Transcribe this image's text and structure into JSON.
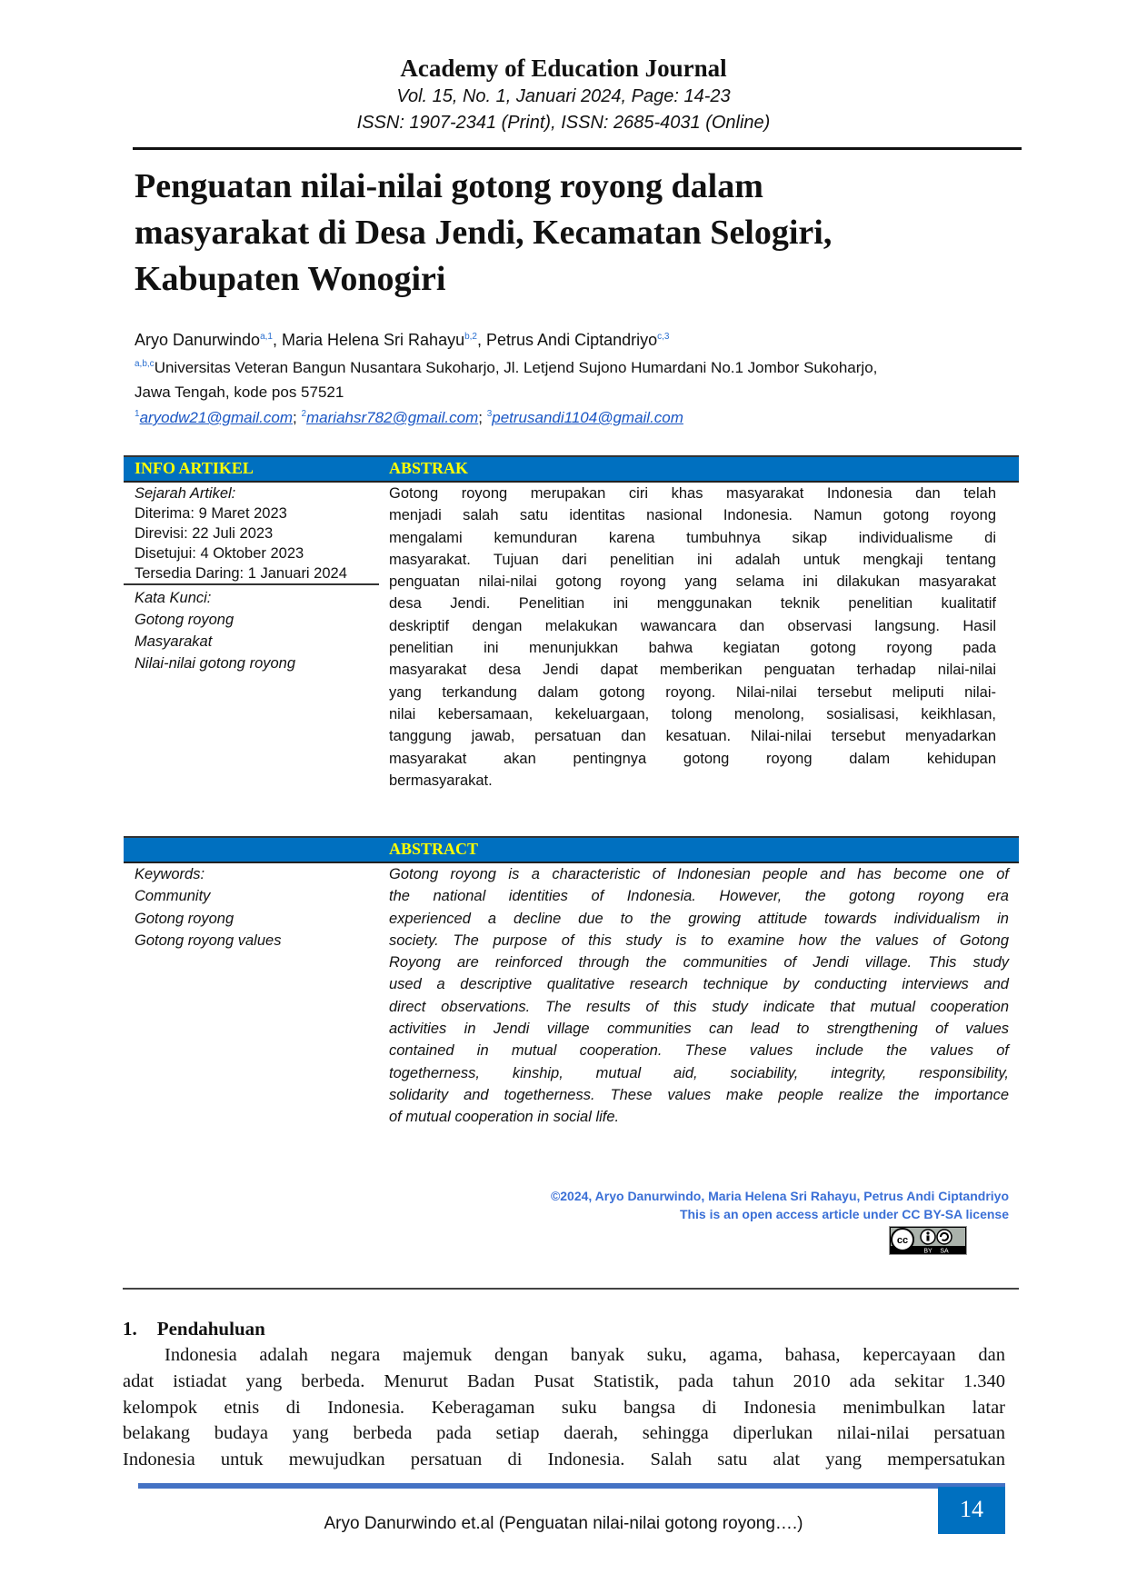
{
  "header": {
    "journal": "Academy of Education Journal",
    "issue": "Vol. 15, No. 1, Januari 2024, Page: 14-23",
    "issn": "ISSN: 1907-2341 (Print), ISSN: 2685-4031 (Online)"
  },
  "title_lines": [
    "Penguatan nilai-nilai gotong royong dalam",
    "masyarakat di Desa Jendi, Kecamatan Selogiri,",
    "Kabupaten Wonogiri"
  ],
  "authors": [
    {
      "name": "Aryo Danurwindo",
      "sup": "a,1"
    },
    {
      "name": "Maria Helena Sri Rahayu",
      "sup": "b,2"
    },
    {
      "name": "Petrus Andi Ciptandriyo",
      "sup": "c,3"
    }
  ],
  "affiliation": {
    "sup": "a,b,c",
    "line1": "Universitas Veteran Bangun Nusantara Sukoharjo, Jl. Letjend Sujono Humardani No.1 Jombor Sukoharjo,",
    "line2": "Jawa Tengah, kode pos 57521"
  },
  "emails": [
    {
      "sup": "1",
      "address": "aryodw21@gmail.com"
    },
    {
      "sup": "2",
      "address": "mariahsr782@gmail.com"
    },
    {
      "sup": "3",
      "address": "petrusandi1104@gmail.com"
    }
  ],
  "info": {
    "heading": "INFO ARTIKEL",
    "history_label": "Sejarah Artikel:",
    "history": [
      "Diterima: 9 Maret 2023",
      "Direvisi: 22 Juli 2023",
      "Disetujui: 4 Oktober 2023",
      "Tersedia Daring: 1 Januari 2024"
    ],
    "keywords_label": "Kata Kunci:",
    "keywords": [
      "Gotong royong",
      "Masyarakat",
      "Nilai-nilai gotong royong"
    ]
  },
  "abstrak": {
    "heading": "ABSTRAK",
    "lines": [
      "Gotong royong merupakan ciri khas masyarakat Indonesia dan telah",
      "menjadi salah satu identitas nasional Indonesia. Namun gotong royong",
      "mengalami kemunduran karena tumbuhnya sikap individualisme di",
      "masyarakat. Tujuan dari penelitian ini adalah untuk mengkaji tentang",
      "penguatan nilai-nilai gotong royong yang selama ini dilakukan masyarakat",
      "desa Jendi. Penelitian ini menggunakan teknik penelitian kualitatif",
      "deskriptif dengan melakukan wawancara dan observasi langsung. Hasil",
      "penelitian ini menunjukkan bahwa kegiatan gotong royong pada",
      "masyarakat desa Jendi dapat memberikan  penguatan terhadap nilai-nilai",
      "yang terkandung dalam gotong royong. Nilai-nilai tersebut meliputi nilai-",
      "nilai kebersamaan, kekeluargaan, tolong menolong, sosialisasi, keikhlasan,",
      "tanggung jawab, persatuan dan kesatuan. Nilai-nilai tersebut menyadarkan",
      "masyarakat akan pentingnya gotong royong dalam kehidupan",
      "bermasyarakat."
    ]
  },
  "abstract": {
    "heading": "ABSTRACT",
    "keywords_label": "Keywords:",
    "keywords": [
      "Community",
      "Gotong royong",
      "Gotong royong values"
    ],
    "lines": [
      "Gotong royong is a characteristic of Indonesian people and has become one of",
      "the national identities of Indonesia. However, the gotong royong era",
      "experienced a decline due to the growing attitude towards individualism in",
      "society. The purpose of this study is to examine how the values of Gotong",
      "Royong are reinforced through the communities of Jendi village. This study",
      "used a descriptive qualitative research technique by conducting interviews and",
      "direct observations. The results of this study indicate that mutual cooperation",
      "activities in Jendi village communities can lead to strengthening of values",
      "contained in mutual cooperation. These values include the values of",
      "togetherness, kinship, mutual aid, sociability, integrity, responsibility,",
      "solidarity and togetherness. These values make people realize the importance",
      "of mutual cooperation in social life."
    ]
  },
  "license": {
    "copyright": "©2024, Aryo Danurwindo, Maria Helena Sri Rahayu, Petrus Andi Ciptandriyo",
    "statement": "This is an open access article under CC BY-SA license",
    "badge_text": [
      "cc",
      "BY",
      "SA"
    ]
  },
  "section": {
    "number": "1.",
    "heading": "Pendahuluan",
    "lines": [
      "Indonesia adalah negara majemuk dengan banyak suku, agama, bahasa, kepercayaan dan",
      "adat istiadat yang berbeda. Menurut Badan Pusat Statistik, pada tahun 2010 ada sekitar 1.340",
      "kelompok etnis di Indonesia. Keberagaman suku bangsa di Indonesia menimbulkan latar",
      "belakang budaya yang berbeda pada setiap daerah, sehingga diperlukan nilai-nilai persatuan",
      "Indonesia untuk mewujudkan persatuan di Indonesia. Salah satu alat yang mempersatukan"
    ]
  },
  "footer": {
    "running_title": "Aryo Danurwindo et.al  (Penguatan nilai-nilai gotong royong….)",
    "page_number": "14"
  },
  "colors": {
    "accent_blue": "#0070c0",
    "heading_yellow": "#ffff00",
    "link_blue": "#1a56c4"
  }
}
